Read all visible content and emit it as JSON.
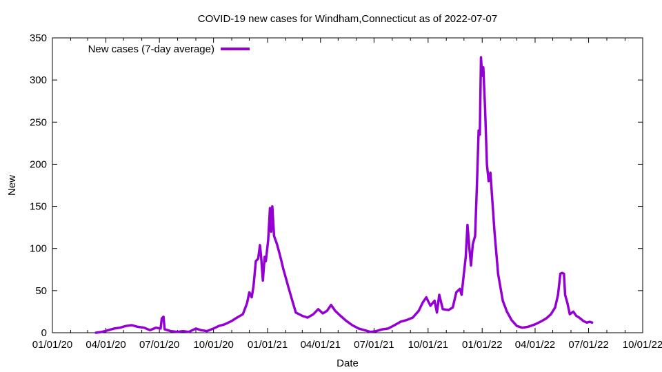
{
  "chart_data": {
    "type": "line",
    "title": "COVID-19 new cases for Windham,Connecticut as of 2022-07-07",
    "xlabel": "Date",
    "ylabel": "New",
    "ylim": [
      0,
      350
    ],
    "yticks": [
      0,
      50,
      100,
      150,
      200,
      250,
      300,
      350
    ],
    "xlim": [
      "2020-01-01",
      "2022-10-01"
    ],
    "xticks": [
      {
        "date": "2020-01-01",
        "label": "01/01/20"
      },
      {
        "date": "2020-04-01",
        "label": "04/01/20"
      },
      {
        "date": "2020-07-01",
        "label": "07/01/20"
      },
      {
        "date": "2020-10-01",
        "label": "10/01/20"
      },
      {
        "date": "2021-01-01",
        "label": "01/01/21"
      },
      {
        "date": "2021-04-01",
        "label": "04/01/21"
      },
      {
        "date": "2021-07-01",
        "label": "07/01/21"
      },
      {
        "date": "2021-10-01",
        "label": "10/01/21"
      },
      {
        "date": "2022-01-01",
        "label": "01/01/22"
      },
      {
        "date": "2022-04-01",
        "label": "04/01/22"
      },
      {
        "date": "2022-07-01",
        "label": "07/01/22"
      },
      {
        "date": "2022-10-01",
        "label": "10/01/22"
      }
    ],
    "grid": false,
    "legend_position": "top-left",
    "series": [
      {
        "name": "New cases (7-day average)",
        "color": "#9400d3",
        "points": [
          [
            "2020-03-15",
            0
          ],
          [
            "2020-03-25",
            1
          ],
          [
            "2020-04-05",
            3
          ],
          [
            "2020-04-15",
            5
          ],
          [
            "2020-04-25",
            6
          ],
          [
            "2020-05-05",
            8
          ],
          [
            "2020-05-15",
            9
          ],
          [
            "2020-05-25",
            7
          ],
          [
            "2020-06-05",
            6
          ],
          [
            "2020-06-15",
            3
          ],
          [
            "2020-06-25",
            6
          ],
          [
            "2020-07-03",
            5
          ],
          [
            "2020-07-05",
            17
          ],
          [
            "2020-07-08",
            19
          ],
          [
            "2020-07-10",
            4
          ],
          [
            "2020-07-20",
            2
          ],
          [
            "2020-08-01",
            1
          ],
          [
            "2020-08-10",
            2
          ],
          [
            "2020-08-20",
            1
          ],
          [
            "2020-09-01",
            5
          ],
          [
            "2020-09-10",
            3
          ],
          [
            "2020-09-20",
            2
          ],
          [
            "2020-10-01",
            5
          ],
          [
            "2020-10-10",
            8
          ],
          [
            "2020-10-20",
            10
          ],
          [
            "2020-11-01",
            14
          ],
          [
            "2020-11-10",
            18
          ],
          [
            "2020-11-20",
            22
          ],
          [
            "2020-11-27",
            35
          ],
          [
            "2020-12-01",
            48
          ],
          [
            "2020-12-05",
            42
          ],
          [
            "2020-12-08",
            55
          ],
          [
            "2020-12-12",
            85
          ],
          [
            "2020-12-16",
            88
          ],
          [
            "2020-12-19",
            104
          ],
          [
            "2020-12-21",
            90
          ],
          [
            "2020-12-24",
            62
          ],
          [
            "2020-12-27",
            90
          ],
          [
            "2020-12-29",
            85
          ],
          [
            "2021-01-02",
            110
          ],
          [
            "2021-01-05",
            148
          ],
          [
            "2021-01-07",
            120
          ],
          [
            "2021-01-09",
            150
          ],
          [
            "2021-01-12",
            115
          ],
          [
            "2021-01-17",
            105
          ],
          [
            "2021-01-22",
            92
          ],
          [
            "2021-01-28",
            75
          ],
          [
            "2021-02-05",
            55
          ],
          [
            "2021-02-12",
            38
          ],
          [
            "2021-02-18",
            24
          ],
          [
            "2021-03-01",
            20
          ],
          [
            "2021-03-10",
            18
          ],
          [
            "2021-03-20",
            22
          ],
          [
            "2021-03-28",
            28
          ],
          [
            "2021-04-05",
            23
          ],
          [
            "2021-04-12",
            26
          ],
          [
            "2021-04-19",
            33
          ],
          [
            "2021-04-26",
            26
          ],
          [
            "2021-05-05",
            20
          ],
          [
            "2021-05-15",
            14
          ],
          [
            "2021-05-25",
            9
          ],
          [
            "2021-06-05",
            5
          ],
          [
            "2021-06-15",
            3
          ],
          [
            "2021-06-25",
            1
          ],
          [
            "2021-07-05",
            2
          ],
          [
            "2021-07-15",
            4
          ],
          [
            "2021-07-25",
            5
          ],
          [
            "2021-08-05",
            9
          ],
          [
            "2021-08-15",
            13
          ],
          [
            "2021-08-25",
            15
          ],
          [
            "2021-09-05",
            18
          ],
          [
            "2021-09-15",
            26
          ],
          [
            "2021-09-22",
            36
          ],
          [
            "2021-09-28",
            42
          ],
          [
            "2021-10-05",
            32
          ],
          [
            "2021-10-12",
            38
          ],
          [
            "2021-10-16",
            24
          ],
          [
            "2021-10-20",
            45
          ],
          [
            "2021-10-26",
            28
          ],
          [
            "2021-11-05",
            27
          ],
          [
            "2021-11-12",
            30
          ],
          [
            "2021-11-18",
            48
          ],
          [
            "2021-11-24",
            52
          ],
          [
            "2021-11-27",
            45
          ],
          [
            "2021-11-30",
            65
          ],
          [
            "2021-12-04",
            90
          ],
          [
            "2021-12-07",
            128
          ],
          [
            "2021-12-10",
            102
          ],
          [
            "2021-12-13",
            80
          ],
          [
            "2021-12-16",
            105
          ],
          [
            "2021-12-20",
            115
          ],
          [
            "2021-12-23",
            175
          ],
          [
            "2021-12-26",
            240
          ],
          [
            "2021-12-28",
            235
          ],
          [
            "2021-12-30",
            327
          ],
          [
            "2022-01-01",
            305
          ],
          [
            "2022-01-03",
            315
          ],
          [
            "2022-01-06",
            265
          ],
          [
            "2022-01-09",
            200
          ],
          [
            "2022-01-12",
            180
          ],
          [
            "2022-01-15",
            190
          ],
          [
            "2022-01-18",
            160
          ],
          [
            "2022-01-22",
            120
          ],
          [
            "2022-01-28",
            70
          ],
          [
            "2022-02-05",
            38
          ],
          [
            "2022-02-12",
            25
          ],
          [
            "2022-02-20",
            15
          ],
          [
            "2022-03-01",
            8
          ],
          [
            "2022-03-10",
            6
          ],
          [
            "2022-03-20",
            7
          ],
          [
            "2022-04-01",
            10
          ],
          [
            "2022-04-10",
            13
          ],
          [
            "2022-04-20",
            17
          ],
          [
            "2022-04-28",
            22
          ],
          [
            "2022-05-05",
            30
          ],
          [
            "2022-05-10",
            45
          ],
          [
            "2022-05-14",
            70
          ],
          [
            "2022-05-17",
            71
          ],
          [
            "2022-05-20",
            70
          ],
          [
            "2022-05-22",
            45
          ],
          [
            "2022-05-26",
            35
          ],
          [
            "2022-05-30",
            22
          ],
          [
            "2022-06-05",
            25
          ],
          [
            "2022-06-10",
            20
          ],
          [
            "2022-06-15",
            18
          ],
          [
            "2022-06-22",
            14
          ],
          [
            "2022-06-28",
            12
          ],
          [
            "2022-07-03",
            13
          ],
          [
            "2022-07-07",
            12
          ]
        ]
      }
    ]
  }
}
